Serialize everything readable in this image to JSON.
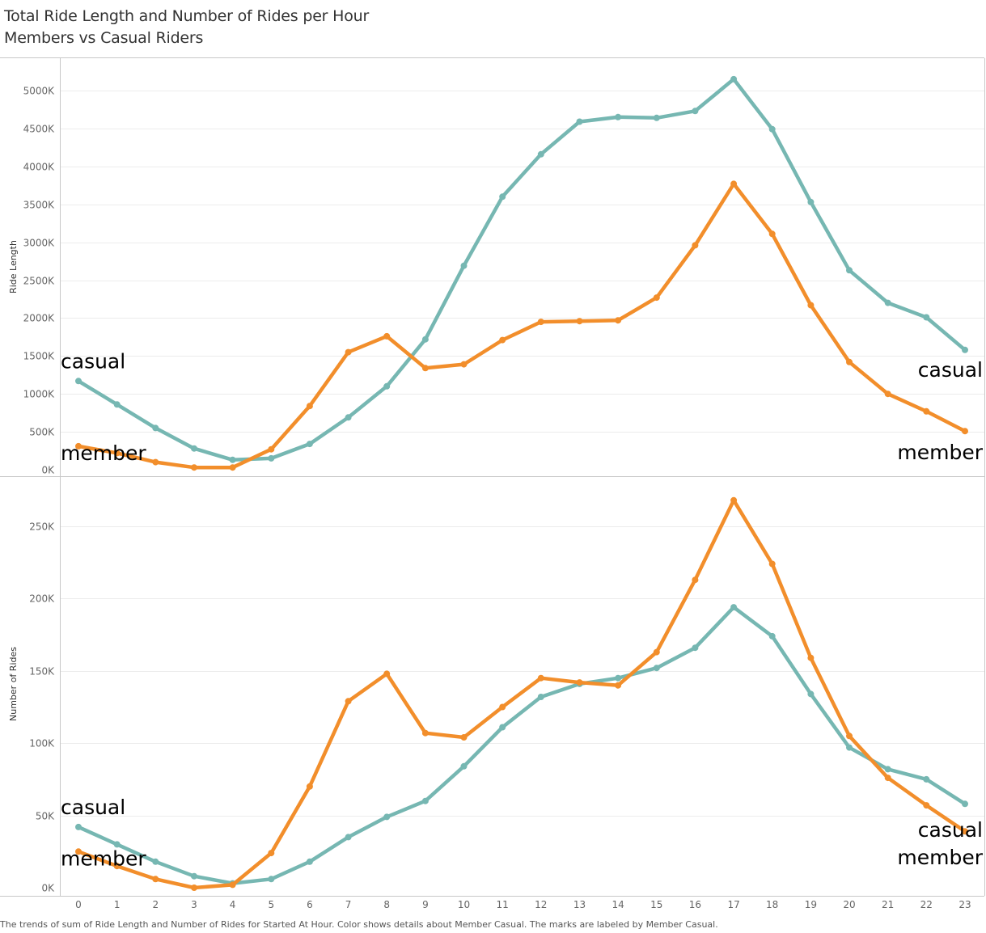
{
  "title": "Total Ride Length and Number of Rides per Hour",
  "subtitle": "Members vs Casual Riders",
  "caption": "The trends of sum of Ride Length and Number of Rides for Started At Hour.  Color shows details about Member Casual.  The marks are labeled by Member Casual.",
  "colors": {
    "casual": "#76b7b2",
    "member": "#f28e2b"
  },
  "chart_data": [
    {
      "type": "line",
      "title": "Total Ride Length and Number of Rides per Hour",
      "ylabel": "Ride Length",
      "xlabel": "",
      "x": [
        0,
        1,
        2,
        3,
        4,
        5,
        6,
        7,
        8,
        9,
        10,
        11,
        12,
        13,
        14,
        15,
        16,
        17,
        18,
        19,
        20,
        21,
        22,
        23
      ],
      "ylim": [
        0,
        5250
      ],
      "yticks": [
        0,
        500,
        1000,
        1500,
        2000,
        2500,
        3000,
        3500,
        4000,
        4500,
        5000
      ],
      "ytick_labels": [
        "0K",
        "500K",
        "1000K",
        "1500K",
        "2000K",
        "2500K",
        "3000K",
        "3500K",
        "4000K",
        "4500K",
        "5000K"
      ],
      "grid": true,
      "series": [
        {
          "name": "casual",
          "values": [
            1170,
            860,
            550,
            280,
            130,
            150,
            340,
            690,
            1100,
            1720,
            2690,
            3600,
            4160,
            4590,
            4650,
            4640,
            4730,
            5150,
            4490,
            3530,
            2630,
            2200,
            2010,
            1580
          ]
        },
        {
          "name": "member",
          "values": [
            310,
            220,
            100,
            30,
            30,
            270,
            840,
            1550,
            1760,
            1340,
            1390,
            1710,
            1950,
            1960,
            1970,
            2270,
            2960,
            3770,
            3110,
            2170,
            1420,
            1000,
            770,
            510
          ]
        }
      ],
      "labels": {
        "left_top": "casual",
        "left_bottom": "member",
        "right_top": "casual",
        "right_bottom": "member"
      }
    },
    {
      "type": "line",
      "ylabel": "Number of Rides",
      "xlabel": "",
      "x": [
        0,
        1,
        2,
        3,
        4,
        5,
        6,
        7,
        8,
        9,
        10,
        11,
        12,
        13,
        14,
        15,
        16,
        17,
        18,
        19,
        20,
        21,
        22,
        23
      ],
      "x_labels": [
        "0",
        "1",
        "2",
        "3",
        "4",
        "5",
        "6",
        "7",
        "8",
        "9",
        "10",
        "11",
        "12",
        "13",
        "14",
        "15",
        "16",
        "17",
        "18",
        "19",
        "20",
        "21",
        "22",
        "23"
      ],
      "ylim": [
        0,
        280
      ],
      "yticks": [
        0,
        50,
        100,
        150,
        200,
        250
      ],
      "ytick_labels": [
        "0K",
        "50K",
        "100K",
        "150K",
        "200K",
        "250K"
      ],
      "grid": true,
      "series": [
        {
          "name": "casual",
          "values": [
            42,
            30,
            18,
            8,
            3,
            6,
            18,
            35,
            49,
            60,
            84,
            111,
            132,
            141,
            145,
            152,
            166,
            194,
            174,
            134,
            97,
            82,
            75,
            58
          ]
        },
        {
          "name": "member",
          "values": [
            25,
            15,
            6,
            0,
            2,
            24,
            70,
            129,
            148,
            107,
            104,
            125,
            145,
            142,
            140,
            163,
            213,
            268,
            224,
            159,
            105,
            76,
            57,
            39
          ]
        }
      ],
      "labels": {
        "left_top": "casual",
        "left_bottom": "member",
        "right_top": "casual",
        "right_bottom": "member"
      }
    }
  ]
}
